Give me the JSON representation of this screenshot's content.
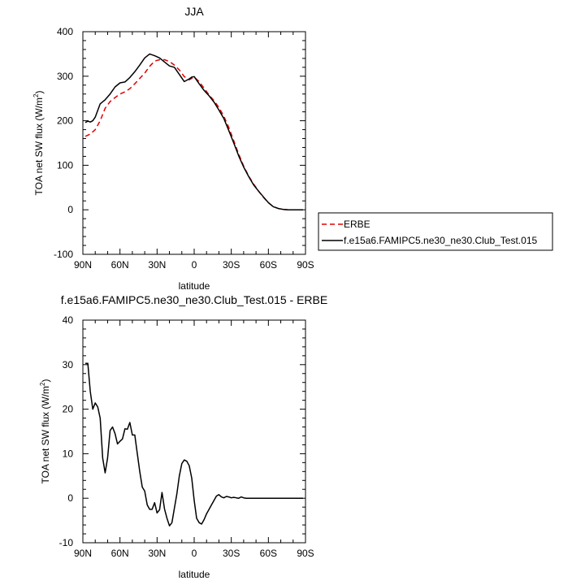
{
  "chart_data": [
    {
      "type": "line",
      "title": "JJA",
      "xlabel": "latitude",
      "ylabel": "TOA net SW flux (W/m",
      "ylabel_sup": "2",
      "ylabel_close": ")",
      "xlim": [
        90,
        -90
      ],
      "ylim": [
        -100,
        400
      ],
      "xticks": [
        90,
        60,
        30,
        0,
        -30,
        -60,
        -90
      ],
      "xtick_labels": [
        "90N",
        "60N",
        "30N",
        "0",
        "30S",
        "60S",
        "90S"
      ],
      "yticks": [
        -100,
        0,
        100,
        200,
        300,
        400
      ],
      "ytick_labels": [
        "-100",
        "0",
        "100",
        "200",
        "300",
        "400"
      ],
      "legend": "right",
      "series": [
        {
          "name": "ERBE",
          "color": "#e00000",
          "dash": "dashed",
          "x": [
            88,
            84,
            80,
            76,
            72,
            68,
            64,
            60,
            56,
            52,
            48,
            44,
            40,
            36,
            32,
            28,
            24,
            20,
            16,
            12,
            8,
            4,
            0,
            -4,
            -8,
            -12,
            -16,
            -20,
            -24,
            -28,
            -32,
            -36,
            -40,
            -44,
            -48,
            -52,
            -56,
            -60,
            -64,
            -68,
            -72,
            -76,
            -80,
            -84,
            -88
          ],
          "y": [
            165,
            170,
            180,
            200,
            228,
            243,
            252,
            260,
            265,
            272,
            283,
            295,
            307,
            322,
            334,
            337,
            337,
            333,
            325,
            314,
            299,
            292,
            298,
            288,
            273,
            258,
            245,
            230,
            210,
            185,
            155,
            125,
            98,
            76,
            58,
            42,
            28,
            16,
            7,
            3,
            1,
            0,
            0,
            0,
            0
          ]
        },
        {
          "name": "f.e15a6.FAMIPC5.ne30_ne30.Club_Test.015",
          "color": "#000000",
          "dash": "solid",
          "x": [
            88,
            86,
            84,
            82,
            80,
            76,
            72,
            68,
            64,
            60,
            56,
            52,
            48,
            44,
            40,
            36,
            32,
            28,
            24,
            20,
            16,
            12,
            8,
            4,
            2,
            0,
            -4,
            -8,
            -12,
            -16,
            -20,
            -24,
            -28,
            -32,
            -36,
            -40,
            -44,
            -48,
            -52,
            -56,
            -60,
            -64,
            -68,
            -72,
            -76,
            -80,
            -84,
            -88
          ],
          "y": [
            196,
            199,
            197,
            200,
            208,
            238,
            247,
            260,
            276,
            285,
            287,
            297,
            310,
            325,
            341,
            350,
            346,
            341,
            332,
            323,
            320,
            304,
            288,
            294,
            298,
            299,
            283,
            268,
            256,
            242,
            224,
            205,
            178,
            150,
            121,
            96,
            75,
            56,
            42,
            29,
            16,
            7,
            3,
            1,
            0,
            0,
            0,
            0
          ]
        }
      ]
    },
    {
      "type": "line",
      "title": "f.e15a6.FAMIPC5.ne30_ne30.Club_Test.015 - ERBE",
      "xlabel": "latitude",
      "ylabel": "TOA net SW flux (W/m",
      "ylabel_sup": "2",
      "ylabel_close": ")",
      "xlim": [
        90,
        -90
      ],
      "ylim": [
        -10,
        40
      ],
      "xticks": [
        90,
        60,
        30,
        0,
        -30,
        -60,
        -90
      ],
      "xtick_labels": [
        "90N",
        "60N",
        "30N",
        "0",
        "30S",
        "60S",
        "90S"
      ],
      "yticks": [
        -10,
        0,
        10,
        20,
        30,
        40
      ],
      "ytick_labels": [
        "-10",
        "0",
        "10",
        "20",
        "30",
        "40"
      ],
      "series": [
        {
          "color": "#000000",
          "dash": "solid",
          "x": [
            88,
            86,
            84,
            82,
            80,
            78,
            76,
            74,
            72,
            70,
            68,
            66,
            64,
            62,
            60,
            58,
            56,
            54,
            52,
            50,
            48,
            46,
            44,
            42,
            40,
            38,
            36,
            34,
            32,
            30,
            28,
            26,
            24,
            22,
            20,
            18,
            16,
            14,
            12,
            10,
            8,
            6,
            4,
            2,
            0,
            -2,
            -4,
            -6,
            -8,
            -10,
            -12,
            -14,
            -16,
            -18,
            -20,
            -22,
            -24,
            -26,
            -28,
            -30,
            -32,
            -34,
            -36,
            -38,
            -40,
            -42,
            -44,
            -46,
            -48,
            -50,
            -52,
            -54,
            -56,
            -58,
            -60,
            -62,
            -64,
            -66,
            -68,
            -70,
            -72,
            -74,
            -76,
            -78,
            -80,
            -82,
            -84,
            -86,
            -88
          ],
          "y": [
            30.3,
            30.3,
            24,
            20,
            21.4,
            20.5,
            18,
            9,
            5.7,
            9,
            15.2,
            16,
            14.5,
            12.2,
            12.8,
            13.3,
            15.6,
            15.5,
            17,
            14.2,
            14.2,
            10,
            6,
            2.5,
            1.6,
            -1.5,
            -2.5,
            -2.5,
            -1,
            -3.3,
            -2.6,
            1.3,
            -2.4,
            -4.5,
            -6.2,
            -5.5,
            -2.3,
            1,
            5,
            7.8,
            8.6,
            8.3,
            7.3,
            4.5,
            -0.5,
            -4.5,
            -5.5,
            -5.8,
            -4.8,
            -3.5,
            -2.5,
            -1.5,
            -0.5,
            0.5,
            0.8,
            0.3,
            0.1,
            0.4,
            0.3,
            0.1,
            0.2,
            0.1,
            0,
            0.3,
            0.1,
            0,
            0,
            0,
            0,
            0,
            0,
            0,
            0,
            0,
            0,
            0,
            0,
            0,
            0,
            0,
            0,
            0,
            0,
            0,
            0,
            0,
            0,
            0,
            0
          ]
        }
      ]
    }
  ]
}
